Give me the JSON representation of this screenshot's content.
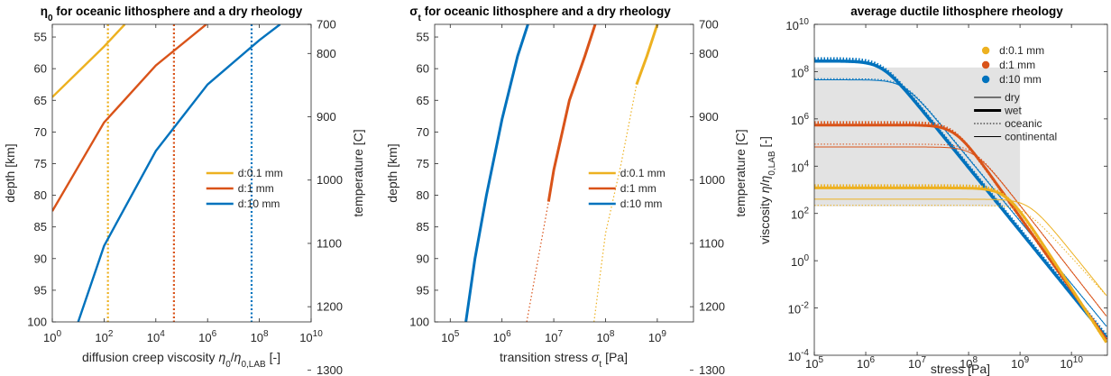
{
  "chart_data": [
    {
      "type": "line",
      "title": "η0 for oceanic lithosphere and a dry rheology",
      "title_parts": {
        "symbol": "η",
        "sub": "0",
        "rest": " for oceanic lithosphere and a dry rheology"
      },
      "xlabel": "diffusion creep viscosity η0/η0,LAB [-]",
      "xlabel_parts": {
        "pre": "diffusion creep viscosity ",
        "sym1": "η",
        "sub1": "0",
        "slash": "/",
        "sym2": "η",
        "sub2": "0,LAB",
        "post": " [-]"
      },
      "ylabel": "depth [km]",
      "y2label": "temperature [C]",
      "xscale": "log",
      "xlim": [
        1,
        10000000000.0
      ],
      "ylim": [
        53,
        100
      ],
      "y_reversed": true,
      "xticks": [
        1,
        100,
        10000,
        1000000,
        100000000,
        10000000000
      ],
      "xtick_labels": [
        {
          "b": "10",
          "e": "0"
        },
        {
          "b": "10",
          "e": "2"
        },
        {
          "b": "10",
          "e": "4"
        },
        {
          "b": "10",
          "e": "6"
        },
        {
          "b": "10",
          "e": "8"
        },
        {
          "b": "10",
          "e": "10"
        }
      ],
      "yticks": [
        55,
        60,
        65,
        70,
        75,
        80,
        85,
        90,
        95,
        100
      ],
      "y2ticks": [
        700,
        800,
        900,
        1000,
        1100,
        1200,
        1300
      ],
      "y2_depth_map": [
        53,
        57.6,
        67.6,
        77.6,
        87.6,
        97.6,
        107.6
      ],
      "legend": {
        "location": "center-right",
        "entries": [
          "d:0.1 mm",
          "d:1 mm",
          "d:10 mm"
        ]
      },
      "series": [
        {
          "name": "d:0.1 mm",
          "color": "#EDB120",
          "points": [
            [
              1,
              64.5
            ],
            [
              100,
              56.5
            ],
            [
              631,
              53
            ]
          ],
          "vline": 141
        },
        {
          "name": "d:1 mm",
          "color": "#D95319",
          "points": [
            [
              1,
              82.5
            ],
            [
              100,
              68.5
            ],
            [
              10000,
              59.5
            ],
            [
              891000,
              53
            ]
          ],
          "vline": 50100
        },
        {
          "name": "d:10 mm",
          "color": "#0072BD",
          "points": [
            [
              10,
              100
            ],
            [
              100,
              88
            ],
            [
              10000,
              73
            ],
            [
              1000000,
              62.5
            ],
            [
              100000000,
              55.5
            ],
            [
              631000000,
              53
            ]
          ],
          "vline": 50100000
        }
      ]
    },
    {
      "type": "line",
      "title": "σt for oceanic lithosphere and a dry rheology",
      "title_parts": {
        "symbol": "σ",
        "sub": "t",
        "rest": " for oceanic lithosphere and a dry rheology"
      },
      "xlabel": "transition stress σt [Pa]",
      "xlabel_parts": {
        "pre": "transition stress ",
        "sym1": "σ",
        "sub1": "t",
        "post": " [Pa]"
      },
      "ylabel": "depth [km]",
      "y2label": "temperature [C]",
      "xscale": "log",
      "xlim": [
        50000,
        5000000000
      ],
      "ylim": [
        53,
        100
      ],
      "y_reversed": true,
      "xticks": [
        100000,
        1000000,
        10000000,
        100000000,
        1000000000
      ],
      "xtick_labels": [
        {
          "b": "10",
          "e": "5"
        },
        {
          "b": "10",
          "e": "6"
        },
        {
          "b": "10",
          "e": "7"
        },
        {
          "b": "10",
          "e": "8"
        },
        {
          "b": "10",
          "e": "9"
        }
      ],
      "yticks": [
        55,
        60,
        65,
        70,
        75,
        80,
        85,
        90,
        95,
        100
      ],
      "y2ticks": [
        700,
        800,
        900,
        1000,
        1100,
        1200,
        1300
      ],
      "y2_depth_map": [
        53,
        57.6,
        67.6,
        77.6,
        87.6,
        97.6,
        107.6
      ],
      "legend": {
        "location": "center-right",
        "entries": [
          "d:0.1 mm",
          "d:1 mm",
          "d:10 mm"
        ]
      },
      "series": [
        {
          "name": "d:0.1 mm",
          "color": "#EDB120",
          "solid": [
            [
              398000000,
              62.5
            ],
            [
              631000000,
              58
            ],
            [
              1000000000,
              53
            ]
          ],
          "dotted": [
            [
              60000000,
              100
            ],
            [
              100000000,
              86
            ],
            [
              200000000,
              75
            ],
            [
              398000000,
              62.5
            ]
          ]
        },
        {
          "name": "d:1 mm",
          "color": "#D95319",
          "solid": [
            [
              7940000,
              81
            ],
            [
              10000000,
              76
            ],
            [
              20000000,
              65
            ],
            [
              40000000,
              58
            ],
            [
              63100000,
              53
            ]
          ],
          "dotted": [
            [
              3000000,
              100
            ],
            [
              5000000,
              90
            ],
            [
              7940000,
              81
            ]
          ]
        },
        {
          "name": "d:10 mm",
          "color": "#0072BD",
          "solid": [
            [
              200000,
              100
            ],
            [
              300000,
              90
            ],
            [
              500000,
              80
            ],
            [
              1000000,
              68
            ],
            [
              2000000,
              58
            ],
            [
              3160000,
              53
            ]
          ],
          "dotted": []
        }
      ]
    },
    {
      "type": "line",
      "title": "average ductile lithosphere rheology",
      "xlabel": "stress [Pa]",
      "ylabel": "viscosity η/η0,LAB [-]",
      "ylabel_parts": {
        "pre": "viscosity ",
        "sym1": "η",
        "slash": "/",
        "sym2": "η",
        "sub2": "0,LAB",
        "post": " [-]"
      },
      "xscale": "log",
      "yscale": "log",
      "xlim": [
        100000,
        50000000000
      ],
      "ylim": [
        0.0001,
        10000000000
      ],
      "xticks": [
        100000,
        1000000,
        10000000,
        100000000,
        1000000000,
        10000000000
      ],
      "xtick_labels": [
        {
          "b": "10",
          "e": "5"
        },
        {
          "b": "10",
          "e": "6"
        },
        {
          "b": "10",
          "e": "7"
        },
        {
          "b": "10",
          "e": "8"
        },
        {
          "b": "10",
          "e": "9"
        },
        {
          "b": "10",
          "e": "10"
        }
      ],
      "yticks": [
        0.0001,
        0.01,
        1,
        100,
        10000,
        1000000,
        100000000,
        10000000000
      ],
      "ytick_labels": [
        {
          "b": "10",
          "e": "-4"
        },
        {
          "b": "10",
          "e": "-2"
        },
        {
          "b": "10",
          "e": "0"
        },
        {
          "b": "10",
          "e": "2"
        },
        {
          "b": "10",
          "e": "4"
        },
        {
          "b": "10",
          "e": "6"
        },
        {
          "b": "10",
          "e": "8"
        },
        {
          "b": "10",
          "e": "10"
        }
      ],
      "legend": {
        "location": "top-right",
        "entries": [
          "d:0.1 mm",
          "d:1 mm",
          "d:10 mm",
          "dry",
          "wet",
          "oceanic",
          "continental"
        ]
      },
      "legend_markers": [
        {
          "name": "d:0.1 mm",
          "color": "#EDB120"
        },
        {
          "name": "d:1 mm",
          "color": "#D95319"
        },
        {
          "name": "d:10 mm",
          "color": "#0072BD"
        }
      ],
      "legend_lines": [
        {
          "name": "dry",
          "style": "thin"
        },
        {
          "name": "wet",
          "style": "thick"
        },
        {
          "name": "oceanic",
          "style": "dotted"
        },
        {
          "name": "continental",
          "style": "thin"
        }
      ],
      "shaded_band": {
        "color": "#e3e3e3",
        "x_from": 100000,
        "x_to": 1000000000,
        "y_low": 200,
        "y_high": 150000000
      },
      "series": [
        {
          "name": "d:10 mm wet oceanic",
          "color": "#0072BD",
          "style": "dotted",
          "width": 3.5,
          "plateau": 350000000,
          "knee": 2000000,
          "end_y": 0.0006
        },
        {
          "name": "d:10 mm wet continental",
          "color": "#0072BD",
          "style": "solid",
          "width": 3.5,
          "plateau": 280000000,
          "knee": 2100000,
          "end_y": 0.0005
        },
        {
          "name": "d:10 mm dry oceanic",
          "color": "#0072BD",
          "style": "dotted",
          "width": 1,
          "plateau": 50000000,
          "knee": 5500000,
          "end_y": 0.0015
        },
        {
          "name": "d:10 mm dry continental",
          "color": "#0072BD",
          "style": "solid",
          "width": 1,
          "plateau": 45000000,
          "knee": 5500000,
          "end_y": 0.0015
        },
        {
          "name": "d:1 mm wet oceanic",
          "color": "#D95319",
          "style": "dotted",
          "width": 3,
          "plateau": 700000,
          "knee": 50000000,
          "end_y": 0.0004
        },
        {
          "name": "d:1 mm wet continental",
          "color": "#D95319",
          "style": "solid",
          "width": 3,
          "plateau": 550000,
          "knee": 55000000,
          "end_y": 0.0004
        },
        {
          "name": "d:1 mm dry oceanic",
          "color": "#D95319",
          "style": "dotted",
          "width": 1,
          "plateau": 85000,
          "knee": 120000000,
          "end_y": 0.004
        },
        {
          "name": "d:1 mm dry continental",
          "color": "#D95319",
          "style": "solid",
          "width": 1,
          "plateau": 65000,
          "knee": 130000000,
          "end_y": 0.004
        },
        {
          "name": "d:0.1 mm wet oceanic",
          "color": "#EDB120",
          "style": "dotted",
          "width": 3,
          "plateau": 1500,
          "knee": 500000000,
          "end_y": 0.0003
        },
        {
          "name": "d:0.1 mm wet continental",
          "color": "#EDB120",
          "style": "solid",
          "width": 3,
          "plateau": 1200,
          "knee": 550000000,
          "end_y": 0.0003
        },
        {
          "name": "d:0.1 mm dry oceanic",
          "color": "#EDB120",
          "style": "dotted",
          "width": 1,
          "plateau": 220,
          "knee": 1200000000,
          "end_y": 0.03
        },
        {
          "name": "d:0.1 mm dry continental",
          "color": "#EDB120",
          "style": "solid",
          "width": 1,
          "plateau": 400,
          "knee": 1500000000,
          "end_y": 0.03
        }
      ]
    }
  ]
}
